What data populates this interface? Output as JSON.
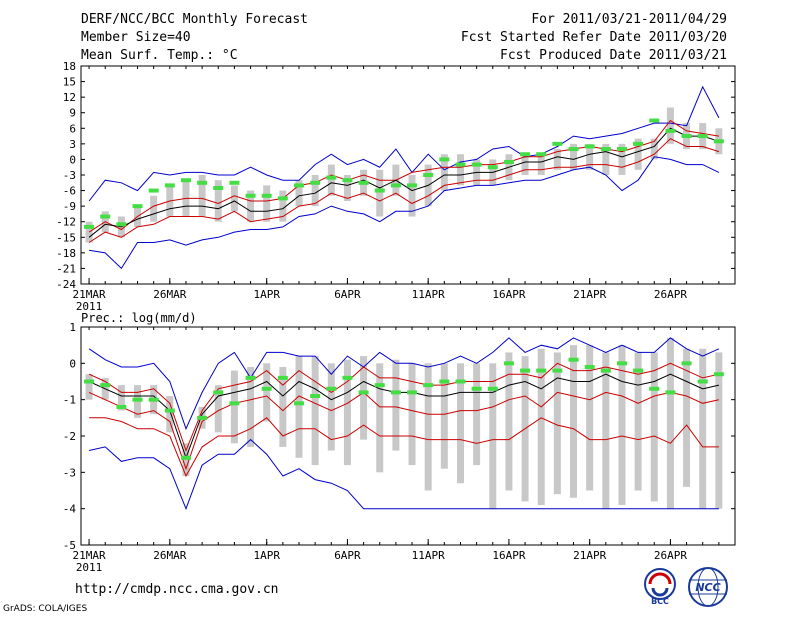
{
  "header": {
    "title": "DERF/NCC/BCC Monthly Forecast",
    "member": "Member Size=40",
    "var": "Mean Surf. Temp.: °C",
    "period": "For 2011/03/21-2011/04/29",
    "started": "Fcst Started Refer Date 2011/03/20",
    "produced": "Fcst Produced Date 2011/03/21"
  },
  "footer": {
    "url": "http://cmdp.ncc.cma.gov.cn",
    "credit": "GrADS: COLA/IGES"
  },
  "logos": {
    "bcc": "BCC",
    "ncc": "NCC"
  },
  "colors": {
    "envelope": "#0000cc",
    "mean": "#000000",
    "spread": "#cc0000",
    "box": "#c8c8c8",
    "marker": "#44dd44",
    "hi_envelope": "#0000cc"
  },
  "chart_data": [
    {
      "type": "line",
      "title": "Mean Surf. Temp.: °C",
      "ylim": [
        -24,
        18
      ],
      "yticks": [
        -24,
        -21,
        -18,
        -15,
        -12,
        -9,
        -6,
        -3,
        0,
        3,
        6,
        9,
        12,
        15,
        18
      ],
      "xlabels": [
        {
          "day": 0,
          "label": "21MAR",
          "sub": "2011"
        },
        {
          "day": 5,
          "label": "26MAR"
        },
        {
          "day": 11,
          "label": "1APR"
        },
        {
          "day": 16,
          "label": "6APR"
        },
        {
          "day": 21,
          "label": "11APR"
        },
        {
          "day": 26,
          "label": "16APR"
        },
        {
          "day": 31,
          "label": "21APR"
        },
        {
          "day": 36,
          "label": "26APR"
        }
      ],
      "days": 40,
      "series": [
        {
          "name": "max",
          "values": [
            -8,
            -4,
            -4.5,
            -6,
            -2.5,
            -3,
            -2.5,
            -2.5,
            -3,
            -3,
            -1.5,
            -3,
            -4,
            -4,
            -1,
            1,
            -1,
            0,
            -1.5,
            2,
            -2.5,
            1,
            -2,
            -0.5,
            0,
            2,
            2.5,
            0.5,
            1,
            2.5,
            4.5,
            4,
            4.5,
            5,
            6,
            7,
            7,
            6.5,
            14,
            8
          ]
        },
        {
          "name": "upper",
          "values": [
            -14,
            -12,
            -13.5,
            -11,
            -9,
            -8,
            -7.5,
            -7.5,
            -8.5,
            -7,
            -8,
            -8,
            -7.5,
            -5,
            -4.5,
            -3,
            -4,
            -3,
            -4,
            -4,
            -2.5,
            -2,
            -1.5,
            -1.5,
            -1,
            -1,
            -0.5,
            0.5,
            0.5,
            1.5,
            2,
            2.5,
            2,
            1.5,
            2.5,
            3.5,
            7.5,
            5.5,
            5,
            4.5
          ]
        },
        {
          "name": "mean",
          "values": [
            -15,
            -12.5,
            -13,
            -11.5,
            -10.5,
            -9.5,
            -9,
            -9,
            -9.5,
            -8,
            -10,
            -10,
            -9.5,
            -7,
            -6.5,
            -4.5,
            -5,
            -4,
            -5.5,
            -4,
            -6,
            -5,
            -3,
            -3,
            -2.5,
            -2.5,
            -1.5,
            -0.5,
            -0.5,
            0.5,
            0,
            1,
            1.5,
            0.5,
            1.5,
            2.5,
            6,
            4.5,
            4.5,
            3.5
          ]
        },
        {
          "name": "lower",
          "values": [
            -16,
            -14,
            -15,
            -13,
            -12.5,
            -11,
            -11,
            -11,
            -11.5,
            -10,
            -12,
            -11.5,
            -11,
            -9,
            -8.5,
            -6.5,
            -7.5,
            -6.5,
            -8,
            -6.5,
            -8.5,
            -7,
            -5,
            -4.5,
            -4,
            -4,
            -3,
            -2,
            -2,
            -1.5,
            -1.5,
            -1,
            -1,
            -1.5,
            -0.5,
            1,
            4,
            2.5,
            2.5,
            1.5
          ]
        },
        {
          "name": "min",
          "values": [
            -17.5,
            -18,
            -21,
            -16,
            -16,
            -15.5,
            -16.5,
            -15.5,
            -15,
            -14,
            -13.5,
            -13.5,
            -13,
            -11,
            -10.5,
            -9,
            -10,
            -10.5,
            -12,
            -10,
            -10,
            -9,
            -6,
            -5.5,
            -5,
            -5,
            -4.5,
            -4,
            -4,
            -3,
            -2,
            -1.5,
            -3,
            -6,
            -4,
            0.5,
            0,
            -1,
            -1,
            -2.5
          ]
        }
      ],
      "boxes": {
        "top": [
          -12,
          -10,
          -11,
          -9,
          -7,
          -5,
          -4,
          -3,
          -4,
          -5,
          -6,
          -5,
          -6,
          -4,
          -3,
          -1,
          -3,
          -2,
          -2,
          -1,
          -3,
          -1,
          1,
          1,
          0,
          0,
          1,
          1,
          1,
          2,
          3,
          3,
          3,
          3,
          4,
          4,
          10,
          7,
          7,
          6
        ],
        "bottom": [
          -16,
          -14,
          -15,
          -13,
          -12,
          -11,
          -11,
          -11,
          -12,
          -10,
          -12,
          -12,
          -12,
          -9,
          -9,
          -7,
          -8,
          -7,
          -11,
          -7,
          -11,
          -9,
          -6,
          -5,
          -5,
          -5,
          -4,
          -3,
          -3,
          -2,
          -2,
          -2,
          -3,
          -3,
          -2,
          0,
          3,
          2,
          2,
          1
        ]
      },
      "markers": [
        -13,
        -11,
        -12.5,
        -9,
        -6,
        -5,
        -4,
        -4.5,
        -5.5,
        -4.5,
        -7,
        -7,
        -7.5,
        -5,
        -4.5,
        -3.5,
        -4,
        -4.5,
        -6,
        -5,
        -5,
        -3,
        0,
        -1,
        -1,
        -1.5,
        -0.5,
        1,
        1,
        3,
        2,
        2.5,
        2,
        2,
        3,
        7.5,
        5.5,
        4.5,
        4.5,
        3.5
      ]
    },
    {
      "type": "line",
      "title": "Prec.: log(mm/d)",
      "ylim": [
        -5,
        1
      ],
      "yticks": [
        -5,
        -4,
        -3,
        -2,
        -1,
        0,
        1
      ],
      "xlabels": [
        {
          "day": 0,
          "label": "21MAR",
          "sub": "2011"
        },
        {
          "day": 5,
          "label": "26MAR"
        },
        {
          "day": 11,
          "label": "1APR"
        },
        {
          "day": 16,
          "label": "6APR"
        },
        {
          "day": 21,
          "label": "11APR"
        },
        {
          "day": 26,
          "label": "16APR"
        },
        {
          "day": 31,
          "label": "21APR"
        },
        {
          "day": 36,
          "label": "26APR"
        }
      ],
      "days": 40,
      "series": [
        {
          "name": "max",
          "values": [
            0.4,
            0.1,
            -0.1,
            -0.1,
            0,
            -0.5,
            -1.8,
            -0.8,
            0,
            0.3,
            -0.4,
            0.3,
            0.3,
            0.2,
            0.2,
            -0.3,
            0.2,
            -0.1,
            0.3,
            0,
            0,
            -0.1,
            0,
            0.2,
            0,
            0.3,
            0.7,
            0.3,
            0.5,
            0.4,
            0.7,
            0.5,
            0.3,
            0.5,
            0.3,
            0.3,
            0.7,
            0.4,
            0.2,
            0.4
          ]
        },
        {
          "name": "upper",
          "values": [
            -0.3,
            -0.5,
            -0.8,
            -0.8,
            -0.7,
            -1.1,
            -2.4,
            -1.3,
            -0.7,
            -0.6,
            -0.5,
            -0.2,
            -0.6,
            -0.2,
            -0.5,
            -0.8,
            -0.5,
            -0.1,
            -0.4,
            -0.4,
            -0.5,
            -0.6,
            -0.6,
            -0.5,
            -0.5,
            -0.5,
            -0.3,
            -0.3,
            -0.4,
            0,
            -0.2,
            -0.2,
            -0.1,
            -0.2,
            -0.3,
            -0.2,
            0,
            -0.2,
            -0.4,
            -0.3
          ]
        },
        {
          "name": "mean",
          "values": [
            -0.5,
            -0.7,
            -0.9,
            -0.9,
            -0.9,
            -1.3,
            -2.6,
            -1.4,
            -0.9,
            -0.8,
            -0.7,
            -0.5,
            -0.9,
            -0.5,
            -0.7,
            -1,
            -0.8,
            -0.5,
            -0.7,
            -0.8,
            -0.8,
            -0.9,
            -0.9,
            -0.8,
            -0.8,
            -0.8,
            -0.6,
            -0.5,
            -0.7,
            -0.4,
            -0.5,
            -0.5,
            -0.3,
            -0.5,
            -0.6,
            -0.5,
            -0.3,
            -0.5,
            -0.7,
            -0.6
          ]
        },
        {
          "name": "lower",
          "values": [
            -0.8,
            -1,
            -1.2,
            -1.4,
            -1.3,
            -1.6,
            -2.9,
            -1.6,
            -1.3,
            -1.1,
            -1,
            -0.9,
            -1.3,
            -0.9,
            -1.1,
            -1.3,
            -1.1,
            -0.8,
            -1.2,
            -1.2,
            -1.3,
            -1.4,
            -1.4,
            -1.3,
            -1.3,
            -1.2,
            -1,
            -0.9,
            -1.2,
            -0.8,
            -0.9,
            -1,
            -0.8,
            -0.9,
            -1.1,
            -0.9,
            -0.8,
            -0.9,
            -1.1,
            -1
          ]
        },
        {
          "name": "low10",
          "values": [
            -1.5,
            -1.5,
            -1.6,
            -1.8,
            -1.8,
            -2,
            -3.1,
            -2.3,
            -2,
            -2,
            -1.8,
            -1.5,
            -2,
            -1.8,
            -1.8,
            -2.1,
            -2,
            -1.7,
            -2,
            -2,
            -2,
            -2.1,
            -2.1,
            -2.1,
            -2.2,
            -2.1,
            -2.1,
            -1.8,
            -1.5,
            -1.7,
            -1.8,
            -2.1,
            -2.1,
            -2,
            -2.1,
            -2,
            -2.2,
            -1.7,
            -2.3,
            -2.3
          ]
        },
        {
          "name": "min",
          "values": [
            -2.4,
            -2.3,
            -2.7,
            -2.6,
            -2.6,
            -2.9,
            -4,
            -2.8,
            -2.5,
            -2.5,
            -2.1,
            -2.5,
            -3.1,
            -2.9,
            -3.2,
            -3.3,
            -3.5,
            -4,
            -4,
            -4,
            -4,
            -4,
            -4,
            -4,
            -4,
            -4,
            -4,
            -4,
            -4,
            -4,
            -4,
            -4,
            -4,
            -4,
            -4,
            -4,
            -4,
            -4,
            -4,
            -4
          ]
        }
      ],
      "boxes": {
        "top": [
          -0.3,
          -0.4,
          -0.6,
          -0.6,
          -0.6,
          -0.9,
          -2.2,
          -1.2,
          -0.6,
          -0.2,
          -0.1,
          0,
          -0.1,
          0.2,
          0.2,
          0,
          0.1,
          0.2,
          0,
          0.1,
          0,
          0,
          0,
          0,
          0,
          0,
          0.3,
          0.2,
          0.4,
          0.3,
          0.5,
          0.5,
          0.3,
          0.5,
          0.3,
          0.3,
          0.7,
          0.4,
          0.4,
          0.3
        ]
      },
      "boxes_bottom": [
        -1,
        -1,
        -1.3,
        -1.5,
        -1.4,
        -1.9,
        -3.1,
        -1.8,
        -1.9,
        -2.2,
        -2.3,
        -1.6,
        -2.3,
        -2.6,
        -2.8,
        -2.4,
        -2.8,
        -2.1,
        -3,
        -2.4,
        -2.8,
        -3.5,
        -2.9,
        -3.3,
        -2.8,
        -4,
        -3.5,
        -3.8,
        -3.9,
        -3.6,
        -3.7,
        -3.5,
        -4,
        -3.9,
        -3.5,
        -3.8,
        -4,
        -3.4,
        -4,
        -4
      ],
      "markers": [
        -0.5,
        -0.6,
        -1.2,
        -1,
        -1,
        -1.3,
        -2.6,
        -1.5,
        -0.8,
        -1.1,
        -0.4,
        -0.7,
        -0.4,
        -1.1,
        -0.9,
        -0.7,
        -0.4,
        -0.8,
        -0.6,
        -0.8,
        -0.8,
        -0.6,
        -0.5,
        -0.5,
        -0.7,
        -0.7,
        0,
        -0.2,
        -0.2,
        -0.2,
        0.1,
        -0.1,
        -0.2,
        0,
        -0.2,
        -0.7,
        -0.8,
        0,
        -0.5,
        -0.3
      ]
    }
  ]
}
